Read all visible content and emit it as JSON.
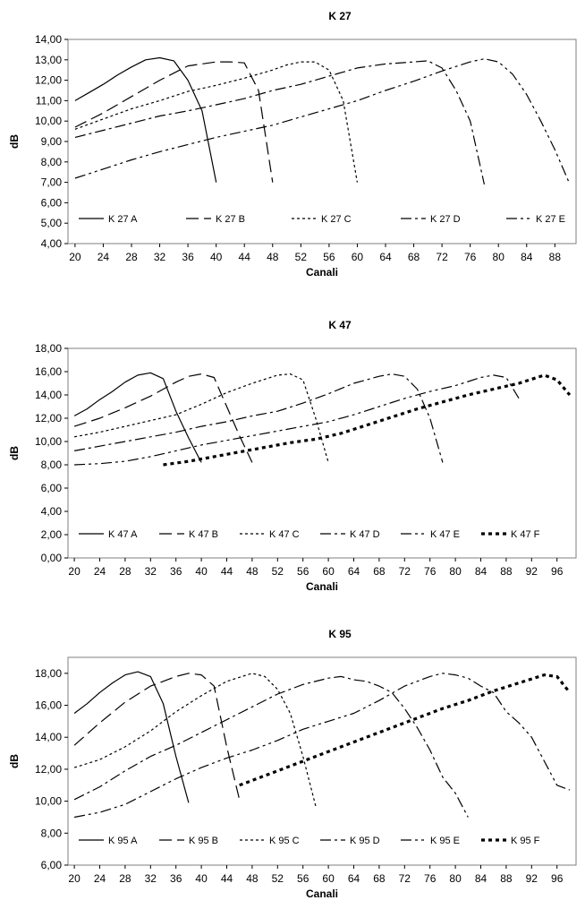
{
  "chart_data": [
    {
      "type": "line",
      "title": "K 27",
      "xlabel": "Canali",
      "ylabel": "dB",
      "xlim": [
        19,
        91
      ],
      "ylim": [
        4,
        14
      ],
      "xticks": [
        20,
        24,
        28,
        32,
        36,
        40,
        44,
        48,
        52,
        56,
        60,
        64,
        68,
        72,
        76,
        80,
        84,
        88
      ],
      "xtick_labels": [
        "20",
        "24",
        "28",
        "32",
        "36",
        "40",
        "44",
        "48",
        "52",
        "56",
        "60",
        "64",
        "68",
        "72",
        "76",
        "80",
        "84",
        "88"
      ],
      "yticks": [
        4,
        5,
        6,
        7,
        8,
        9,
        10,
        11,
        12,
        13,
        14
      ],
      "ytick_labels": [
        "4,00",
        "5,00",
        "6,00",
        "7,00",
        "8,00",
        "9,00",
        "10,00",
        "11,00",
        "12,00",
        "13,00",
        "14,00"
      ],
      "grid": false,
      "legend_position": "bottom-inside",
      "series": [
        {
          "name": "K 27 A",
          "style": "solid",
          "x": [
            20,
            22,
            24,
            26,
            28,
            30,
            32,
            34,
            36,
            38,
            40
          ],
          "y": [
            11.0,
            11.4,
            11.8,
            12.25,
            12.65,
            13.0,
            13.1,
            12.95,
            12.0,
            10.5,
            7.0
          ]
        },
        {
          "name": "K 27 B",
          "style": "long-dash",
          "x": [
            20,
            24,
            28,
            32,
            36,
            40,
            42,
            44,
            46,
            48
          ],
          "y": [
            9.7,
            10.4,
            11.2,
            12.0,
            12.7,
            12.9,
            12.9,
            12.85,
            11.5,
            7.0
          ]
        },
        {
          "name": "K 27 C",
          "style": "dotted",
          "x": [
            20,
            24,
            28,
            32,
            36,
            40,
            44,
            48,
            50,
            52,
            54,
            56,
            58,
            60
          ],
          "y": [
            9.6,
            10.1,
            10.6,
            11.0,
            11.45,
            11.75,
            12.1,
            12.5,
            12.75,
            12.9,
            12.9,
            12.5,
            11.0,
            7.0
          ]
        },
        {
          "name": "K 27 D",
          "style": "dash-dot",
          "x": [
            20,
            24,
            28,
            32,
            36,
            40,
            44,
            48,
            52,
            56,
            60,
            64,
            68,
            70,
            72,
            74,
            76,
            78
          ],
          "y": [
            9.2,
            9.55,
            9.9,
            10.25,
            10.5,
            10.8,
            11.1,
            11.5,
            11.8,
            12.2,
            12.6,
            12.8,
            12.9,
            12.95,
            12.6,
            11.5,
            10.0,
            6.9
          ]
        },
        {
          "name": "K 27 E",
          "style": "dash-dot-dot",
          "x": [
            20,
            24,
            28,
            32,
            36,
            40,
            44,
            48,
            52,
            56,
            60,
            64,
            68,
            72,
            76,
            78,
            80,
            82,
            84,
            86,
            88,
            90
          ],
          "y": [
            7.2,
            7.65,
            8.1,
            8.5,
            8.85,
            9.2,
            9.5,
            9.8,
            10.2,
            10.6,
            11.0,
            11.5,
            11.95,
            12.45,
            12.9,
            13.05,
            12.9,
            12.3,
            11.3,
            10.0,
            8.6,
            7.0
          ]
        }
      ]
    },
    {
      "type": "line",
      "title": "K 47",
      "xlabel": "Canali",
      "ylabel": "dB",
      "xlim": [
        19,
        99
      ],
      "ylim": [
        0,
        18
      ],
      "xticks": [
        20,
        24,
        28,
        32,
        36,
        40,
        44,
        48,
        52,
        56,
        60,
        64,
        68,
        72,
        76,
        80,
        84,
        88,
        92,
        96
      ],
      "xtick_labels": [
        "20",
        "24",
        "28",
        "32",
        "36",
        "40",
        "44",
        "48",
        "52",
        "56",
        "60",
        "64",
        "68",
        "72",
        "76",
        "80",
        "84",
        "88",
        "92",
        "96"
      ],
      "yticks": [
        0,
        2,
        4,
        6,
        8,
        10,
        12,
        14,
        16,
        18
      ],
      "ytick_labels": [
        "0,00",
        "2,00",
        "4,00",
        "6,00",
        "8,00",
        "10,00",
        "12,00",
        "14,00",
        "16,00",
        "18,00"
      ],
      "grid": false,
      "legend_position": "bottom-inside",
      "series": [
        {
          "name": "K 47 A",
          "style": "solid",
          "x": [
            20,
            22,
            24,
            26,
            28,
            30,
            32,
            34,
            36,
            38,
            40
          ],
          "y": [
            12.2,
            12.8,
            13.6,
            14.3,
            15.1,
            15.7,
            15.9,
            15.4,
            12.6,
            10.3,
            8.2
          ]
        },
        {
          "name": "K 47 B",
          "style": "long-dash",
          "x": [
            20,
            24,
            28,
            32,
            36,
            38,
            40,
            42,
            44,
            46,
            48
          ],
          "y": [
            11.3,
            12.0,
            12.9,
            13.9,
            15.1,
            15.6,
            15.8,
            15.5,
            13.0,
            10.5,
            8.2
          ]
        },
        {
          "name": "K 47 C",
          "style": "dotted",
          "x": [
            20,
            24,
            28,
            32,
            36,
            40,
            44,
            48,
            52,
            54,
            56,
            58,
            60
          ],
          "y": [
            10.4,
            10.8,
            11.3,
            11.8,
            12.3,
            13.2,
            14.2,
            15.0,
            15.7,
            15.8,
            15.3,
            12.0,
            8.2
          ]
        },
        {
          "name": "K 47 D",
          "style": "dash-dot",
          "x": [
            20,
            24,
            28,
            32,
            36,
            40,
            44,
            48,
            52,
            56,
            60,
            64,
            68,
            70,
            72,
            74,
            76,
            78
          ],
          "y": [
            9.2,
            9.6,
            10.0,
            10.4,
            10.8,
            11.3,
            11.7,
            12.2,
            12.6,
            13.3,
            14.1,
            15.0,
            15.6,
            15.8,
            15.6,
            14.5,
            12.0,
            8.2
          ]
        },
        {
          "name": "K 47 E",
          "style": "dash-dot-dot",
          "x": [
            20,
            24,
            28,
            32,
            36,
            40,
            44,
            48,
            52,
            56,
            60,
            64,
            68,
            72,
            76,
            80,
            84,
            86,
            88,
            90
          ],
          "y": [
            8.0,
            8.1,
            8.3,
            8.7,
            9.2,
            9.7,
            10.1,
            10.5,
            10.9,
            11.3,
            11.7,
            12.3,
            13.0,
            13.7,
            14.3,
            14.8,
            15.5,
            15.7,
            15.5,
            13.7
          ]
        },
        {
          "name": "K 47 F",
          "style": "heavy-dotted",
          "x": [
            34,
            38,
            42,
            46,
            50,
            54,
            58,
            62,
            66,
            70,
            74,
            78,
            82,
            86,
            90,
            94,
            96,
            98
          ],
          "y": [
            8.0,
            8.3,
            8.7,
            9.1,
            9.5,
            9.9,
            10.2,
            10.7,
            11.4,
            12.1,
            12.8,
            13.4,
            14.0,
            14.5,
            15.0,
            15.7,
            15.3,
            14.0
          ]
        }
      ]
    },
    {
      "type": "line",
      "title": "K 95",
      "xlabel": "Canali",
      "ylabel": "dB",
      "xlim": [
        19,
        99
      ],
      "ylim": [
        6,
        19
      ],
      "xticks": [
        20,
        24,
        28,
        32,
        36,
        40,
        44,
        48,
        52,
        56,
        60,
        64,
        68,
        72,
        76,
        80,
        84,
        88,
        92,
        96
      ],
      "xtick_labels": [
        "20",
        "24",
        "28",
        "32",
        "36",
        "40",
        "44",
        "48",
        "52",
        "56",
        "60",
        "64",
        "68",
        "72",
        "76",
        "80",
        "84",
        "88",
        "92",
        "96"
      ],
      "yticks": [
        6,
        8,
        10,
        12,
        14,
        16,
        18
      ],
      "ytick_labels": [
        "6,00",
        "8,00",
        "10,00",
        "12,00",
        "14,00",
        "16,00",
        "18,00"
      ],
      "grid": false,
      "legend_position": "bottom-inside",
      "series": [
        {
          "name": "K 95 A",
          "style": "solid",
          "x": [
            20,
            22,
            24,
            26,
            28,
            30,
            32,
            34,
            36,
            38
          ],
          "y": [
            15.5,
            16.1,
            16.8,
            17.4,
            17.9,
            18.1,
            17.8,
            16.1,
            12.8,
            9.9
          ]
        },
        {
          "name": "K 95 B",
          "style": "long-dash",
          "x": [
            20,
            24,
            28,
            32,
            36,
            38,
            40,
            42,
            44,
            46
          ],
          "y": [
            13.5,
            14.9,
            16.2,
            17.2,
            17.8,
            18.0,
            17.9,
            17.2,
            13.4,
            10.1
          ]
        },
        {
          "name": "K 95 C",
          "style": "dotted",
          "x": [
            20,
            24,
            28,
            32,
            36,
            40,
            44,
            48,
            50,
            52,
            54,
            56,
            58
          ],
          "y": [
            12.1,
            12.6,
            13.4,
            14.4,
            15.6,
            16.6,
            17.5,
            18.0,
            17.8,
            17.0,
            15.5,
            12.8,
            9.7
          ]
        },
        {
          "name": "K 95 D",
          "style": "dash-dot",
          "x": [
            20,
            24,
            28,
            32,
            36,
            40,
            44,
            48,
            52,
            56,
            60,
            62,
            64,
            66,
            68,
            70,
            72,
            74,
            76,
            78,
            80,
            82
          ],
          "y": [
            10.1,
            10.9,
            11.9,
            12.8,
            13.5,
            14.3,
            15.1,
            15.9,
            16.7,
            17.3,
            17.7,
            17.8,
            17.6,
            17.5,
            17.2,
            16.8,
            15.8,
            14.6,
            13.2,
            11.5,
            10.5,
            9.0
          ]
        },
        {
          "name": "K 95 E",
          "style": "dash-dot-dot",
          "x": [
            20,
            24,
            28,
            32,
            36,
            40,
            44,
            48,
            52,
            56,
            60,
            64,
            68,
            72,
            76,
            78,
            80,
            82,
            84,
            86,
            88,
            90,
            92,
            94,
            96,
            98
          ],
          "y": [
            9.0,
            9.3,
            9.8,
            10.6,
            11.4,
            12.1,
            12.7,
            13.2,
            13.8,
            14.5,
            15.0,
            15.5,
            16.3,
            17.2,
            17.8,
            18.0,
            17.9,
            17.7,
            17.2,
            16.8,
            15.6,
            14.9,
            14.0,
            12.5,
            11.0,
            10.7
          ]
        },
        {
          "name": "K 95 F",
          "style": "heavy-dotted",
          "x": [
            46,
            50,
            54,
            58,
            62,
            66,
            70,
            74,
            78,
            82,
            86,
            90,
            94,
            96,
            98
          ],
          "y": [
            11.0,
            11.6,
            12.2,
            12.8,
            13.4,
            14.0,
            14.6,
            15.2,
            15.8,
            16.3,
            16.9,
            17.4,
            17.9,
            17.8,
            16.8
          ]
        }
      ]
    }
  ]
}
